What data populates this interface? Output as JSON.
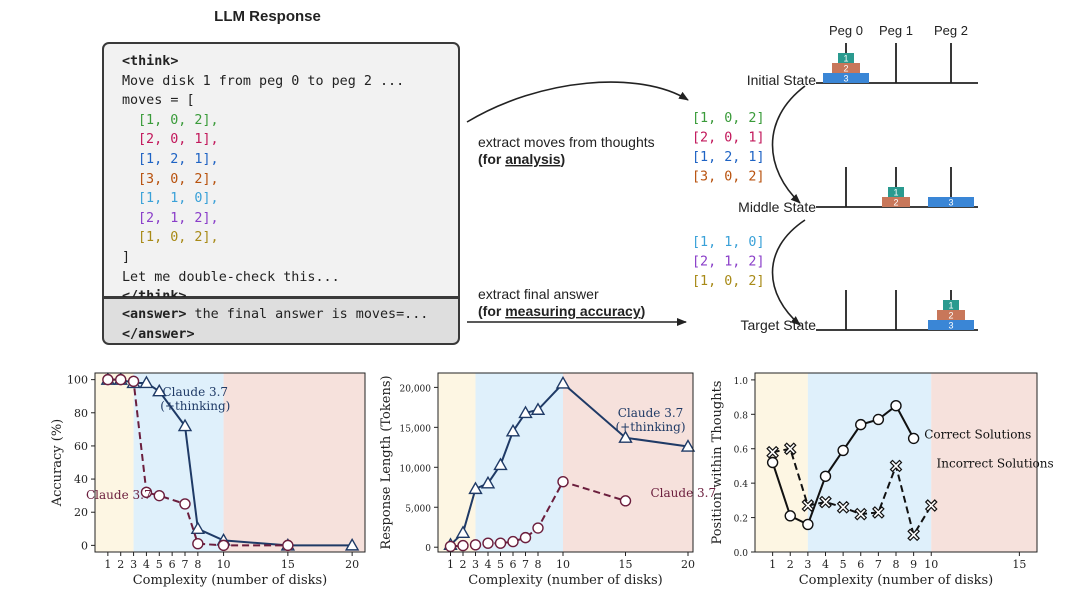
{
  "llm_response": {
    "title": "LLM Response",
    "think_open": "<think>",
    "intro_line": "Move disk 1 from peg 0 to peg 2 ...",
    "moves_open": "moves = [",
    "moves": [
      {
        "text": "[1, 0, 2],",
        "color": "#3a9b3a"
      },
      {
        "text": "[2, 0, 1],",
        "color": "#c2185b"
      },
      {
        "text": "[1, 2, 1],",
        "color": "#1e63c4"
      },
      {
        "text": "[3, 0, 2],",
        "color": "#b8520e"
      },
      {
        "text": "[1, 1, 0],",
        "color": "#3aa1d8"
      },
      {
        "text": "[2, 1, 2],",
        "color": "#8a3ec9"
      },
      {
        "text": "[1, 0, 2],",
        "color": "#a88a17"
      }
    ],
    "moves_close": "]",
    "double_check": "Let me double-check this...",
    "think_close": "</think>",
    "answer_open": "<answer>",
    "answer_text": " the final answer is moves=...",
    "answer_close": "</answer>"
  },
  "diagram": {
    "extract_moves_line1": "extract moves  from thoughts",
    "extract_moves_prefix": "(for ",
    "extract_moves_emph": "analysis",
    "extract_moves_suffix": ")",
    "extract_answer_line1": "extract final answer",
    "extract_answer_prefix": "(for ",
    "extract_answer_emph": "measuring accuracy",
    "extract_answer_suffix": ")",
    "moves_group_1": [
      {
        "text": "[1, 0, 2]",
        "color": "#3a9b3a"
      },
      {
        "text": "[2, 0, 1]",
        "color": "#c2185b"
      },
      {
        "text": "[1, 2, 1]",
        "color": "#1e63c4"
      },
      {
        "text": "[3, 0, 2]",
        "color": "#b8520e"
      }
    ],
    "moves_group_2": [
      {
        "text": "[1, 1, 0]",
        "color": "#3aa1d8"
      },
      {
        "text": "[2, 1, 2]",
        "color": "#8a3ec9"
      },
      {
        "text": "[1, 0, 2]",
        "color": "#a88a17"
      }
    ],
    "peg_labels": [
      "Peg 0",
      "Peg 1",
      "Peg 2"
    ],
    "states": [
      {
        "label": "Initial State",
        "stacks": [
          [
            3,
            2,
            1
          ],
          [],
          []
        ]
      },
      {
        "label": "Middle State",
        "stacks": [
          [],
          [
            2,
            1
          ],
          [
            3
          ]
        ]
      },
      {
        "label": "Target State",
        "stacks": [
          [],
          [],
          [
            3,
            2,
            1
          ]
        ]
      }
    ],
    "disk_colors": {
      "1": "#2a9a8f",
      "2": "#c8775a",
      "3": "#3a86d6"
    }
  },
  "chart_data": [
    {
      "type": "line",
      "xlabel": "Complexity (number of disks)",
      "ylabel": "Accuracy (%)",
      "xlim": [
        0,
        21
      ],
      "ylim": [
        -4,
        104
      ],
      "xticks": [
        1,
        2,
        3,
        4,
        5,
        6,
        7,
        8,
        10,
        15,
        20
      ],
      "yticks": [
        0,
        20,
        40,
        60,
        80,
        100
      ],
      "regions": [
        {
          "from": 0,
          "to": 3,
          "color": "#fdf6e3"
        },
        {
          "from": 3,
          "to": 10,
          "color": "#dff0fb"
        },
        {
          "from": 10,
          "to": 21,
          "color": "#f6e1dc"
        }
      ],
      "series": [
        {
          "name": "Claude 3.7 (+thinking)",
          "label_lines": [
            "Claude 3.7",
            "(+thinking)"
          ],
          "color": "#1f3a66",
          "dash": false,
          "marker": "triangle",
          "x": [
            1,
            2,
            3,
            4,
            5,
            7,
            8,
            10,
            15,
            20
          ],
          "y": [
            100,
            100,
            98,
            98,
            93,
            72,
            10,
            3,
            0,
            0
          ]
        },
        {
          "name": "Claude 3.7",
          "label_lines": [
            "Claude 3.7"
          ],
          "color": "#6b1e3d",
          "dash": true,
          "marker": "circle",
          "x": [
            1,
            2,
            3,
            4,
            5,
            7,
            8,
            10,
            15
          ],
          "y": [
            100,
            100,
            99,
            32,
            30,
            25,
            1,
            0,
            0
          ]
        }
      ],
      "series_labels": [
        {
          "x": 7.8,
          "y": 90
        },
        {
          "x": -0.7,
          "y": 28
        }
      ]
    },
    {
      "type": "line",
      "xlabel": "Complexity (number of disks)",
      "ylabel": "Response Length (Tokens)",
      "xlim": [
        0,
        20.4
      ],
      "ylim": [
        -600,
        21800
      ],
      "xticks": [
        1,
        2,
        3,
        4,
        5,
        6,
        7,
        8,
        10,
        15,
        20
      ],
      "yticks": [
        0,
        5000,
        10000,
        15000,
        20000
      ],
      "ytick_labels": [
        "0",
        "5,000",
        "10,000",
        "15,000",
        "20,000"
      ],
      "regions": [
        {
          "from": 0,
          "to": 3,
          "color": "#fdf6e3"
        },
        {
          "from": 3,
          "to": 10,
          "color": "#dff0fb"
        },
        {
          "from": 10,
          "to": 20.4,
          "color": "#f6e1dc"
        }
      ],
      "series": [
        {
          "name": "Claude 3.7 (+thinking)",
          "label_lines": [
            "Claude 3.7",
            "(+thinking)"
          ],
          "color": "#1f3a66",
          "dash": false,
          "marker": "triangle",
          "x": [
            1,
            2,
            3,
            4,
            5,
            6,
            7,
            8,
            10,
            15,
            20
          ],
          "y": [
            300,
            1800,
            7300,
            8000,
            10300,
            14500,
            16800,
            17200,
            20500,
            13700,
            12600
          ]
        },
        {
          "name": "Claude 3.7",
          "label_lines": [
            "Claude 3.7"
          ],
          "color": "#6b1e3d",
          "dash": true,
          "marker": "circle",
          "x": [
            1,
            2,
            3,
            4,
            5,
            6,
            7,
            8,
            10,
            15
          ],
          "y": [
            100,
            200,
            300,
            500,
            500,
            700,
            1200,
            2400,
            8200,
            5800
          ]
        }
      ],
      "series_labels": [
        {
          "x": 17.0,
          "y": 16300
        },
        {
          "x": 17.0,
          "y": 6300
        }
      ]
    },
    {
      "type": "line",
      "xlabel": "Complexity (number of disks)",
      "ylabel": "Position within Thoughts",
      "xlim": [
        0,
        16
      ],
      "ylim": [
        0,
        1.04
      ],
      "xticks": [
        1,
        2,
        3,
        4,
        5,
        6,
        7,
        8,
        9,
        10,
        15
      ],
      "yticks": [
        0.0,
        0.2,
        0.4,
        0.6,
        0.8,
        1.0
      ],
      "ytick_labels": [
        "0.0",
        "0.2",
        "0.4",
        "0.6",
        "0.8",
        "1.0"
      ],
      "regions": [
        {
          "from": 0,
          "to": 3,
          "color": "#fdf6e3"
        },
        {
          "from": 3,
          "to": 10,
          "color": "#dff0fb"
        },
        {
          "from": 10,
          "to": 16,
          "color": "#f6e1dc"
        }
      ],
      "series": [
        {
          "name": "Correct Solutions",
          "label_lines": [
            "Correct Solutions"
          ],
          "color": "#111111",
          "dash": false,
          "marker": "circle",
          "x": [
            1,
            2,
            3,
            4,
            5,
            6,
            7,
            8,
            9
          ],
          "y": [
            0.52,
            0.21,
            0.16,
            0.44,
            0.59,
            0.74,
            0.77,
            0.85,
            0.66
          ]
        },
        {
          "name": "Incorrect Solutions",
          "label_lines": [
            "Incorrect Solutions"
          ],
          "color": "#111111",
          "dash": true,
          "marker": "cross",
          "x": [
            1,
            2,
            3,
            4,
            5,
            6,
            7,
            8,
            9,
            10
          ],
          "y": [
            0.58,
            0.6,
            0.27,
            0.29,
            0.26,
            0.22,
            0.23,
            0.5,
            0.1,
            0.27
          ]
        }
      ],
      "series_labels": [
        {
          "x": 9.6,
          "y": 0.66
        },
        {
          "x": 10.3,
          "y": 0.49
        }
      ]
    }
  ]
}
